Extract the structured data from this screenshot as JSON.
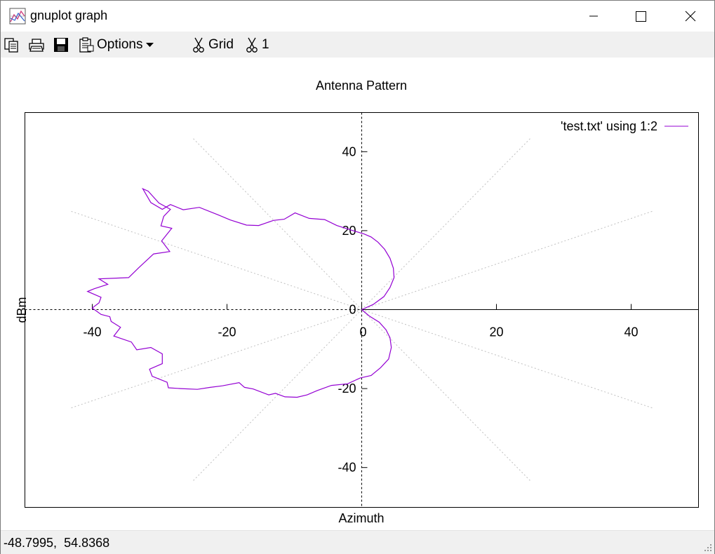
{
  "window": {
    "title": "gnuplot graph"
  },
  "toolbar": {
    "options_label": "Options",
    "grid_label": "Grid",
    "one_label": "1"
  },
  "status": {
    "coords": "-48.7995,  54.8368"
  },
  "colors": {
    "series": "#9400d3",
    "grid": "#c0c0c0",
    "axis": "#000000"
  },
  "icons": {
    "app": "gnuplot-graph-icon",
    "minimize": "minimize-icon",
    "maximize": "maximize-icon",
    "close": "close-icon",
    "copy": "copy-icon",
    "print": "printer-icon",
    "save": "floppy-disk-icon",
    "options": "clipboard-options-icon",
    "grid": "scissors-icon",
    "one": "scissors-icon"
  },
  "chart_data": {
    "type": "line",
    "title": "Antenna Pattern",
    "xlabel": "Azimuth",
    "ylabel": "dBm",
    "xlim": [
      -50,
      50
    ],
    "ylim": [
      -50,
      50
    ],
    "xticks": [
      "-40",
      "-20",
      "0",
      "20",
      "40"
    ],
    "yticks": [
      "40",
      "20",
      "0",
      "-20",
      "-40"
    ],
    "grid": "polar, dotted, at 30 degree spokes",
    "legend": "top-right",
    "series": [
      {
        "name": "'test.txt' using 1:2",
        "x": [
          0,
          1.7,
          3.3,
          4.2,
          4.8,
          4.7,
          4.2,
          3.4,
          2.4,
          1.4,
          0.3,
          -1.5,
          -3.7,
          -5.5,
          -7.8,
          -9.9,
          -11.5,
          -13.1,
          -15.3,
          -17.1,
          -19.5,
          -21.3,
          -24.1,
          -26.5,
          -28.4,
          -29.6,
          -31.3,
          -32.5,
          -31.7,
          -30.1,
          -28.4,
          -29.4,
          -29.8,
          -28.2,
          -29.7,
          -28.5,
          -30.9,
          -33.1,
          -34.6,
          -39.0,
          -37.7,
          -39.7,
          -40.7,
          -38.7,
          -39.0,
          -40.0,
          -38.7,
          -37.4,
          -37.2,
          -35.8,
          -36.8,
          -34.2,
          -33.4,
          -31.3,
          -29.6,
          -29.6,
          -31.5,
          -31.1,
          -28.9,
          -28.7,
          -26.9,
          -24.4,
          -22.5,
          -20.7,
          -18.2,
          -17.4,
          -16.1,
          -13.8,
          -12.8,
          -11.4,
          -9.6,
          -8.1,
          -6.6,
          -4.5,
          -2.1,
          -0.2,
          1.4,
          2.8,
          4.0,
          4.4,
          4.2,
          3.6,
          2.6,
          1.1,
          0
        ],
        "y": [
          0,
          1.3,
          3.3,
          5.6,
          8.1,
          10.5,
          13.0,
          15.3,
          17.1,
          18.4,
          19.2,
          20.1,
          21.3,
          22.8,
          23.1,
          24.5,
          22.9,
          22.6,
          21.3,
          21.4,
          22.7,
          24.0,
          25.9,
          25.3,
          26.6,
          25.4,
          27.1,
          30.6,
          30.0,
          27.0,
          25.4,
          23.6,
          21.2,
          20.6,
          17.4,
          14.7,
          14.1,
          10.6,
          8.1,
          7.8,
          6.4,
          5.3,
          4.6,
          3.1,
          1.7,
          0.4,
          -1.2,
          -1.8,
          -3.0,
          -4.5,
          -6.7,
          -8.2,
          -10.2,
          -9.6,
          -11.2,
          -13.7,
          -15.1,
          -16.9,
          -18.4,
          -19.8,
          -20.0,
          -20.2,
          -19.7,
          -19.3,
          -18.5,
          -19.7,
          -20.1,
          -21.6,
          -21.2,
          -22.1,
          -22.2,
          -21.6,
          -20.5,
          -19.2,
          -18.8,
          -17.3,
          -16.7,
          -14.7,
          -12.5,
          -9.6,
          -7.1,
          -5.1,
          -3.2,
          -1.6,
          0
        ]
      }
    ]
  }
}
